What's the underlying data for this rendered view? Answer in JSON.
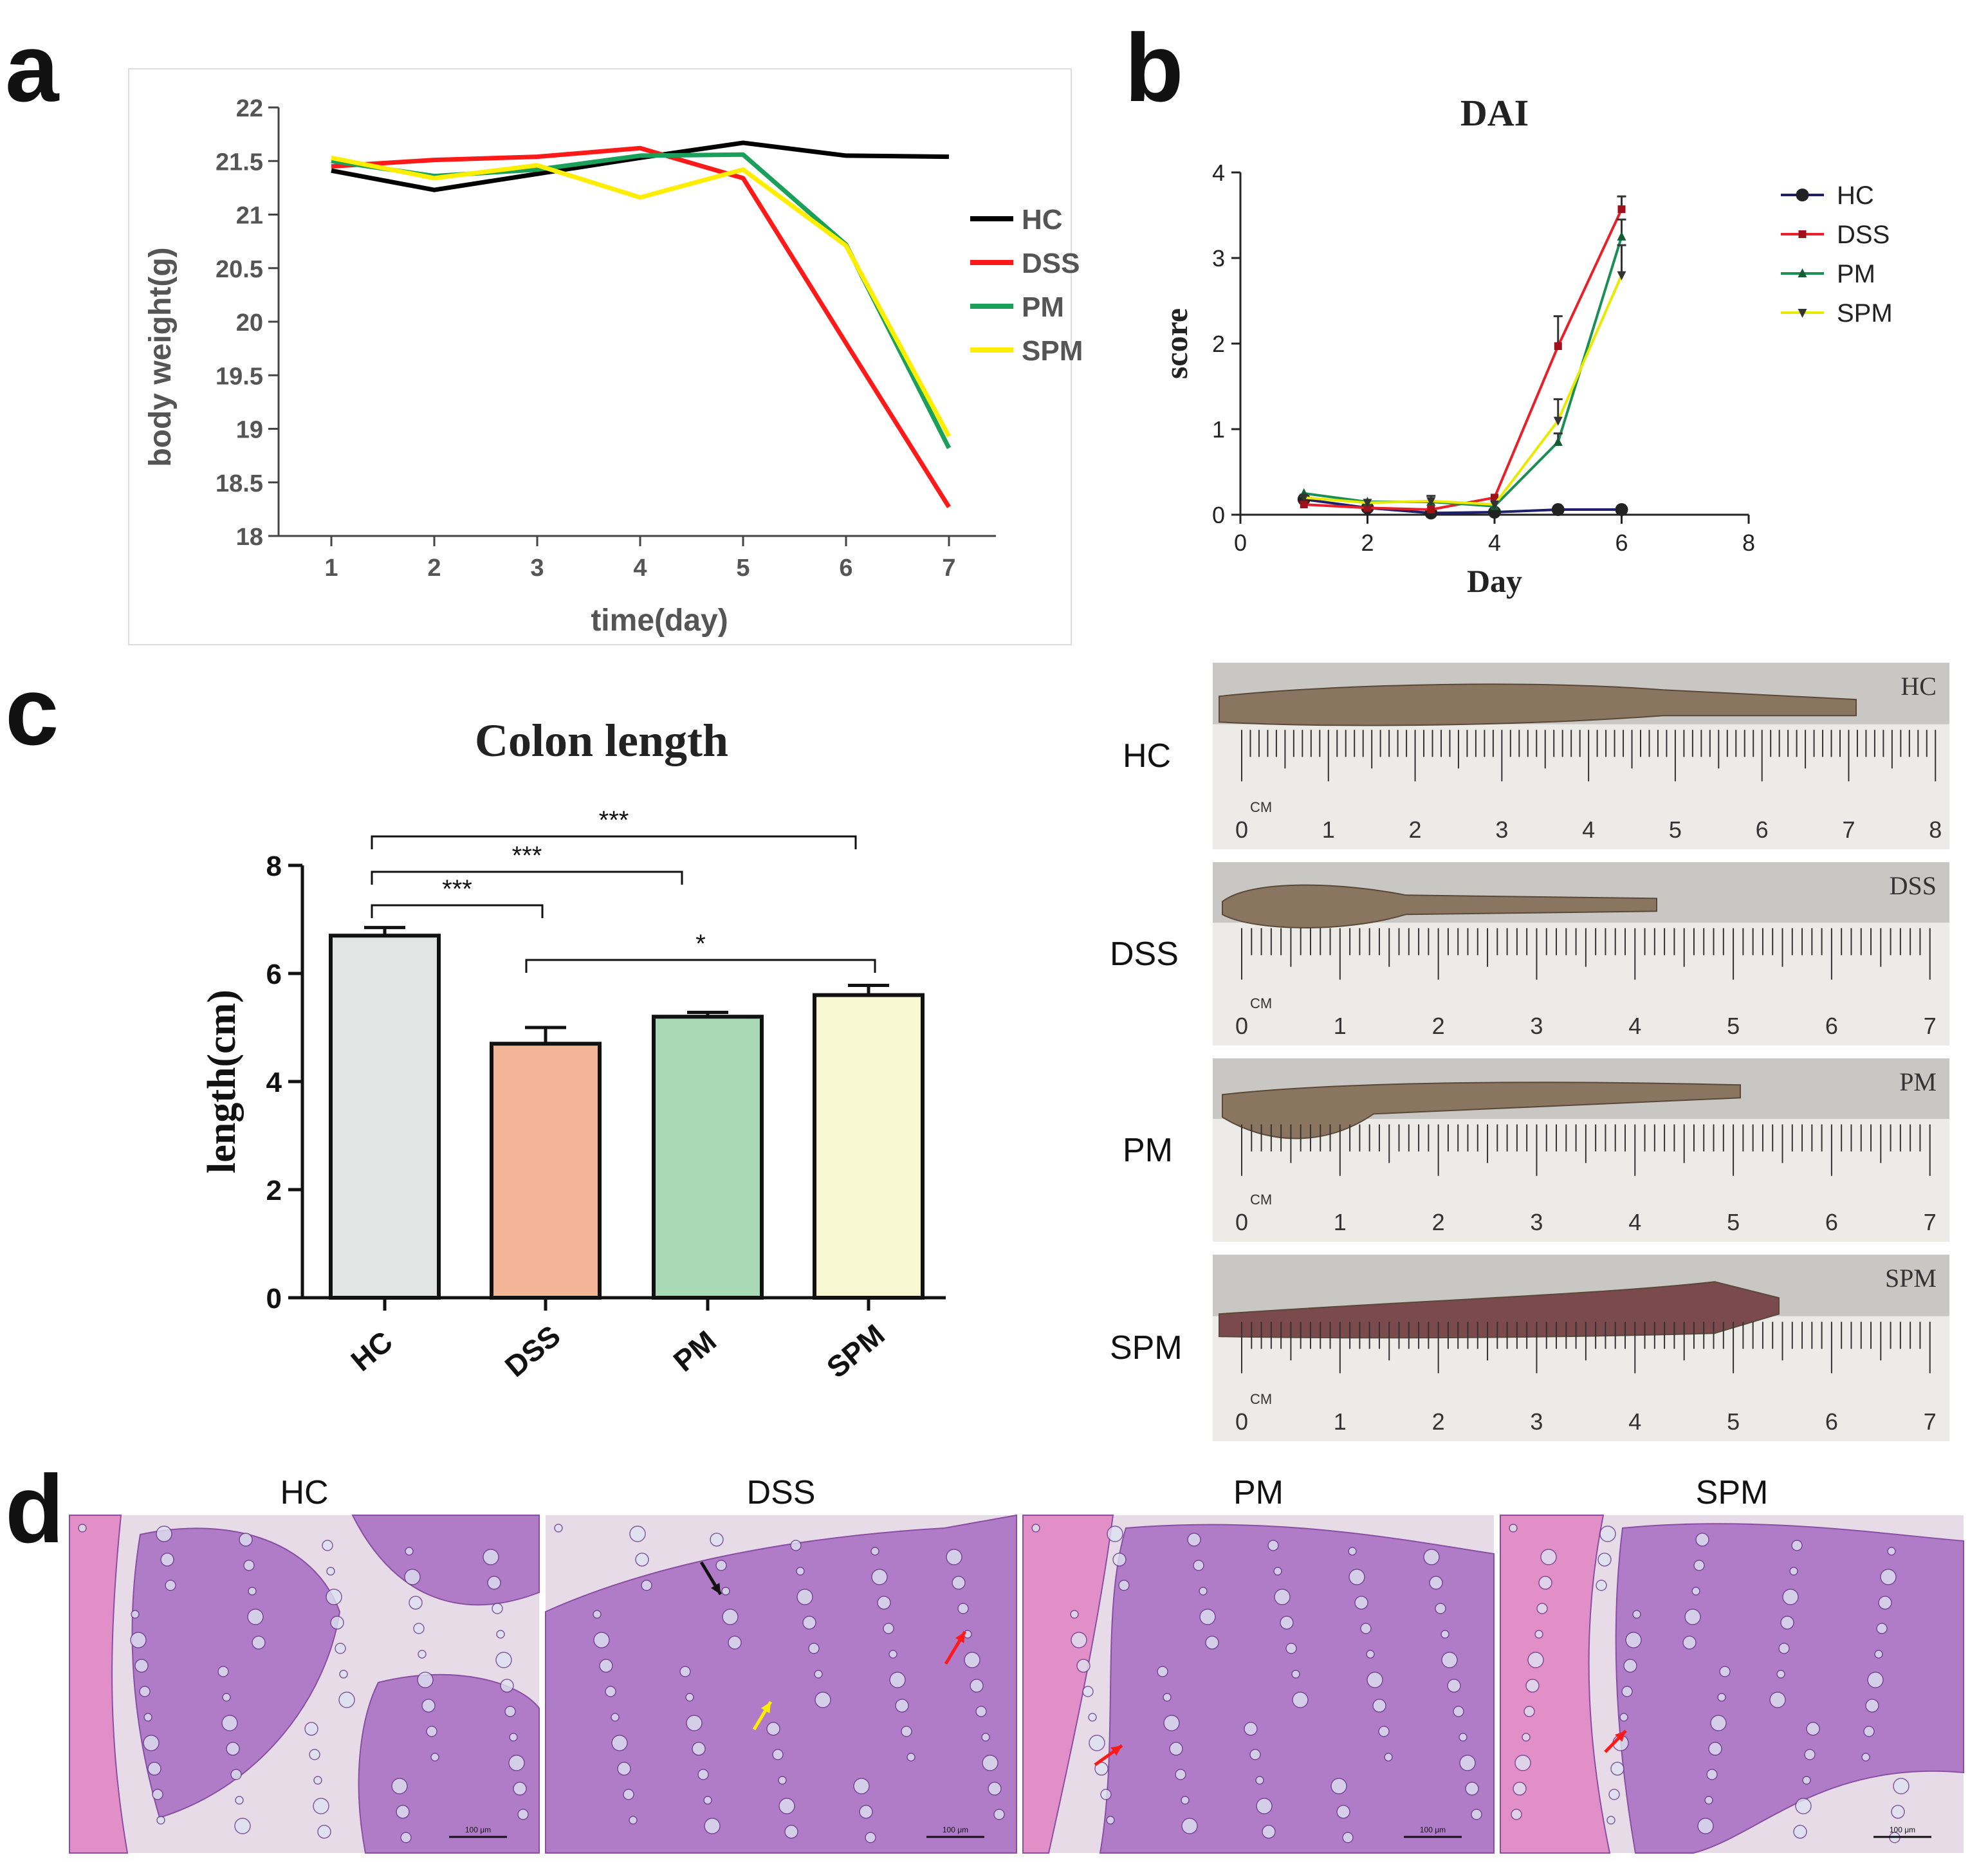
{
  "panels": {
    "a": "a",
    "b": "b",
    "c": "c",
    "d": "d"
  },
  "colors": {
    "HC": "#000000",
    "DSS": "#ff1a1a",
    "PM": "#1aa05a",
    "SPM": "#ffee00",
    "HC_bar": "#e3e4e4",
    "DSS_bar": "#f4b497",
    "PM_bar": "#a9d8b4",
    "SPM_bar": "#f8f7d2",
    "dai_HC": "#1f1f6e"
  },
  "chart_data": [
    {
      "id": "a",
      "type": "line",
      "title": "",
      "xlabel": "time(day)",
      "ylabel": "body weight(g)",
      "x": [
        1,
        2,
        3,
        4,
        5,
        6,
        7
      ],
      "xticks": [
        "1",
        "2",
        "3",
        "4",
        "5",
        "6",
        "7"
      ],
      "yticks": [
        "18",
        "18.5",
        "19",
        "19.5",
        "20",
        "20.5",
        "21",
        "21.5",
        "22"
      ],
      "ylim": [
        18,
        22
      ],
      "xlim": [
        0.5,
        7.5
      ],
      "series": [
        {
          "name": "HC",
          "values": [
            21.41,
            21.23,
            21.38,
            21.53,
            21.67,
            21.55,
            21.54
          ]
        },
        {
          "name": "DSS",
          "values": [
            21.45,
            21.51,
            21.54,
            21.62,
            21.34,
            19.8,
            18.27
          ]
        },
        {
          "name": "PM",
          "values": [
            21.5,
            21.36,
            21.42,
            21.55,
            21.56,
            20.72,
            18.82
          ]
        },
        {
          "name": "SPM",
          "values": [
            21.53,
            21.34,
            21.46,
            21.16,
            21.42,
            20.71,
            18.93
          ]
        }
      ],
      "legend": [
        "HC",
        "DSS",
        "PM",
        "SPM"
      ]
    },
    {
      "id": "b",
      "type": "line",
      "title": "DAI",
      "xlabel": "Day",
      "ylabel": "score",
      "x": [
        1,
        2,
        3,
        4,
        5,
        6
      ],
      "xticks": [
        "0",
        "2",
        "4",
        "6",
        "8"
      ],
      "yticks": [
        "0",
        "1",
        "2",
        "3",
        "4"
      ],
      "xlim": [
        0,
        8
      ],
      "ylim": [
        0,
        4
      ],
      "series": [
        {
          "name": "HC",
          "values": [
            0.18,
            0.08,
            0.02,
            0.03,
            0.06,
            0.06
          ],
          "errors": [
            0,
            0,
            0,
            0,
            0,
            0
          ]
        },
        {
          "name": "DSS",
          "values": [
            0.12,
            0.08,
            0.06,
            0.2,
            1.97,
            3.57
          ],
          "errors": [
            0,
            0,
            0,
            0,
            0.35,
            0.15
          ]
        },
        {
          "name": "PM",
          "values": [
            0.25,
            0.15,
            0.15,
            0.1,
            0.85,
            3.25
          ],
          "errors": [
            0,
            0,
            0,
            0,
            0.1,
            0.2
          ]
        },
        {
          "name": "SPM",
          "values": [
            0.2,
            0.14,
            0.16,
            0.12,
            1.1,
            2.8
          ],
          "errors": [
            0,
            0,
            0.06,
            0,
            0.25,
            0.35
          ]
        }
      ],
      "legend": [
        "HC",
        "DSS",
        "PM",
        "SPM"
      ]
    },
    {
      "id": "c",
      "type": "bar",
      "title": "Colon length",
      "xlabel": "",
      "ylabel": "length(cm)",
      "categories": [
        "HC",
        "DSS",
        "PM",
        "SPM"
      ],
      "values": [
        6.7,
        4.7,
        5.2,
        5.6
      ],
      "errors": [
        0.15,
        0.3,
        0.08,
        0.18
      ],
      "yticks": [
        "0",
        "2",
        "4",
        "6",
        "8"
      ],
      "ylim": [
        0,
        8
      ],
      "significance": [
        {
          "from": 0,
          "to": 1,
          "label": "***"
        },
        {
          "from": 0,
          "to": 2,
          "label": "***"
        },
        {
          "from": 0,
          "to": 3,
          "label": "***"
        },
        {
          "from": 1,
          "to": 3,
          "label": "*"
        }
      ]
    }
  ],
  "photos": {
    "labels": [
      "HC",
      "DSS",
      "PM",
      "SPM"
    ],
    "tags": [
      "HC",
      "DSS",
      "PM",
      "SPM"
    ],
    "cm": "CM",
    "ruler_numbers": [
      [
        "0",
        "1",
        "2",
        "3",
        "4",
        "5",
        "6",
        "7",
        "8"
      ],
      [
        "0",
        "1",
        "2",
        "3",
        "4",
        "5",
        "6",
        "7"
      ],
      [
        "0",
        "1",
        "2",
        "3",
        "4",
        "5",
        "6",
        "7"
      ],
      [
        "0",
        "1",
        "2",
        "3",
        "4",
        "5",
        "6",
        "7"
      ]
    ]
  },
  "histology": {
    "labels": [
      "HC",
      "DSS",
      "PM",
      "SPM"
    ],
    "scale_text": "100 μm"
  }
}
